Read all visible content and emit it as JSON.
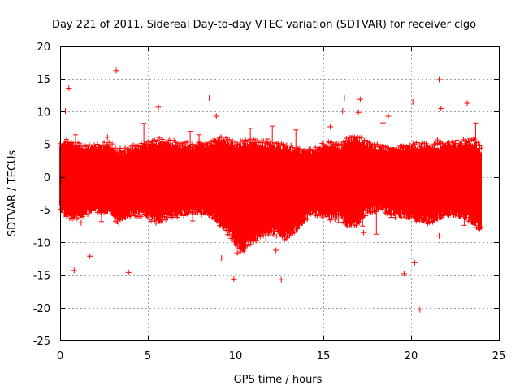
{
  "chart_data": {
    "type": "scatter",
    "title": "Day 221 of 2011, Sidereal Day-to-day VTEC variation (SDTVAR) for receiver clgo",
    "xlabel": "GPS time / hours",
    "ylabel": "SDTVAR / TECUs",
    "xlim": [
      0,
      25
    ],
    "ylim": [
      -25,
      20
    ],
    "xticks": [
      0,
      5,
      10,
      15,
      20,
      25
    ],
    "yticks": [
      -25,
      -20,
      -15,
      -10,
      -5,
      0,
      5,
      10,
      15,
      20
    ],
    "grid": true,
    "marker": "+",
    "color": "#ff0000",
    "series": [
      {
        "name": "SDTVAR",
        "description_envelope": {
          "x": [
            0.0,
            0.3,
            0.8,
            1.5,
            2.0,
            2.8,
            3.2,
            3.6,
            4.0,
            4.6,
            5.2,
            5.6,
            6.5,
            7.5,
            8.3,
            8.8,
            9.2,
            9.7,
            10.0,
            10.4,
            10.9,
            11.4,
            12.0,
            12.5,
            13.0,
            13.5,
            14.0,
            14.5,
            15.0,
            15.5,
            16.0,
            16.3,
            16.7,
            17.0,
            17.5,
            18.2,
            19.0,
            19.7,
            20.3,
            20.8,
            21.4,
            22.0,
            22.6,
            23.2,
            23.6,
            24.0
          ],
          "upper": [
            4.5,
            5.2,
            4.8,
            4.3,
            4.5,
            4.8,
            4.0,
            3.8,
            4.2,
            4.6,
            5.2,
            5.4,
            5.0,
            4.6,
            4.8,
            5.4,
            5.6,
            5.2,
            4.8,
            5.0,
            5.4,
            5.2,
            4.8,
            4.6,
            4.4,
            4.2,
            3.8,
            4.0,
            4.6,
            5.0,
            4.4,
            5.4,
            6.0,
            5.6,
            5.0,
            4.4,
            4.2,
            4.6,
            4.8,
            4.6,
            4.6,
            4.8,
            5.0,
            5.2,
            5.4,
            4.0
          ],
          "lower": [
            -4.5,
            -5.5,
            -6.0,
            -5.0,
            -4.8,
            -4.8,
            -6.5,
            -6.0,
            -5.5,
            -5.2,
            -6.0,
            -6.5,
            -5.5,
            -5.0,
            -5.2,
            -6.0,
            -7.0,
            -8.5,
            -10.0,
            -11.0,
            -9.5,
            -8.5,
            -8.0,
            -8.5,
            -9.0,
            -7.5,
            -6.0,
            -5.0,
            -5.5,
            -6.0,
            -5.5,
            -7.0,
            -7.0,
            -6.5,
            -5.0,
            -4.5,
            -5.5,
            -5.5,
            -6.0,
            -6.5,
            -6.0,
            -5.5,
            -5.5,
            -6.0,
            -7.0,
            -7.5
          ]
        },
        "outliers": [
          {
            "x": 3.2,
            "y": 16.3
          },
          {
            "x": 0.5,
            "y": 13.6
          },
          {
            "x": 0.3,
            "y": 10.1
          },
          {
            "x": 5.6,
            "y": 10.7
          },
          {
            "x": 8.5,
            "y": 12.1
          },
          {
            "x": 8.9,
            "y": 9.3
          },
          {
            "x": 16.2,
            "y": 12.1
          },
          {
            "x": 17.1,
            "y": 11.9
          },
          {
            "x": 16.1,
            "y": 10.1
          },
          {
            "x": 17.0,
            "y": 9.9
          },
          {
            "x": 15.4,
            "y": 7.7
          },
          {
            "x": 18.4,
            "y": 8.3
          },
          {
            "x": 18.7,
            "y": 9.3
          },
          {
            "x": 20.1,
            "y": 11.5
          },
          {
            "x": 21.6,
            "y": 14.9
          },
          {
            "x": 21.7,
            "y": 10.5
          },
          {
            "x": 23.2,
            "y": 11.3
          },
          {
            "x": 2.7,
            "y": 6.1
          },
          {
            "x": 21.5,
            "y": 5.7
          },
          {
            "x": 0.8,
            "y": -14.3
          },
          {
            "x": 1.7,
            "y": -12.1
          },
          {
            "x": 3.9,
            "y": -14.6
          },
          {
            "x": 9.9,
            "y": -15.6
          },
          {
            "x": 9.2,
            "y": -12.4
          },
          {
            "x": 12.6,
            "y": -15.7
          },
          {
            "x": 11.2,
            "y": -9.7
          },
          {
            "x": 19.6,
            "y": -14.8
          },
          {
            "x": 20.2,
            "y": -13.1
          },
          {
            "x": 20.5,
            "y": -20.3
          },
          {
            "x": 1.2,
            "y": -7.0
          },
          {
            "x": 17.3,
            "y": -8.5
          },
          {
            "x": 21.6,
            "y": -9.0
          },
          {
            "x": 12.3,
            "y": -11.2
          },
          {
            "x": 10.1,
            "y": -11.6
          }
        ]
      }
    ]
  }
}
